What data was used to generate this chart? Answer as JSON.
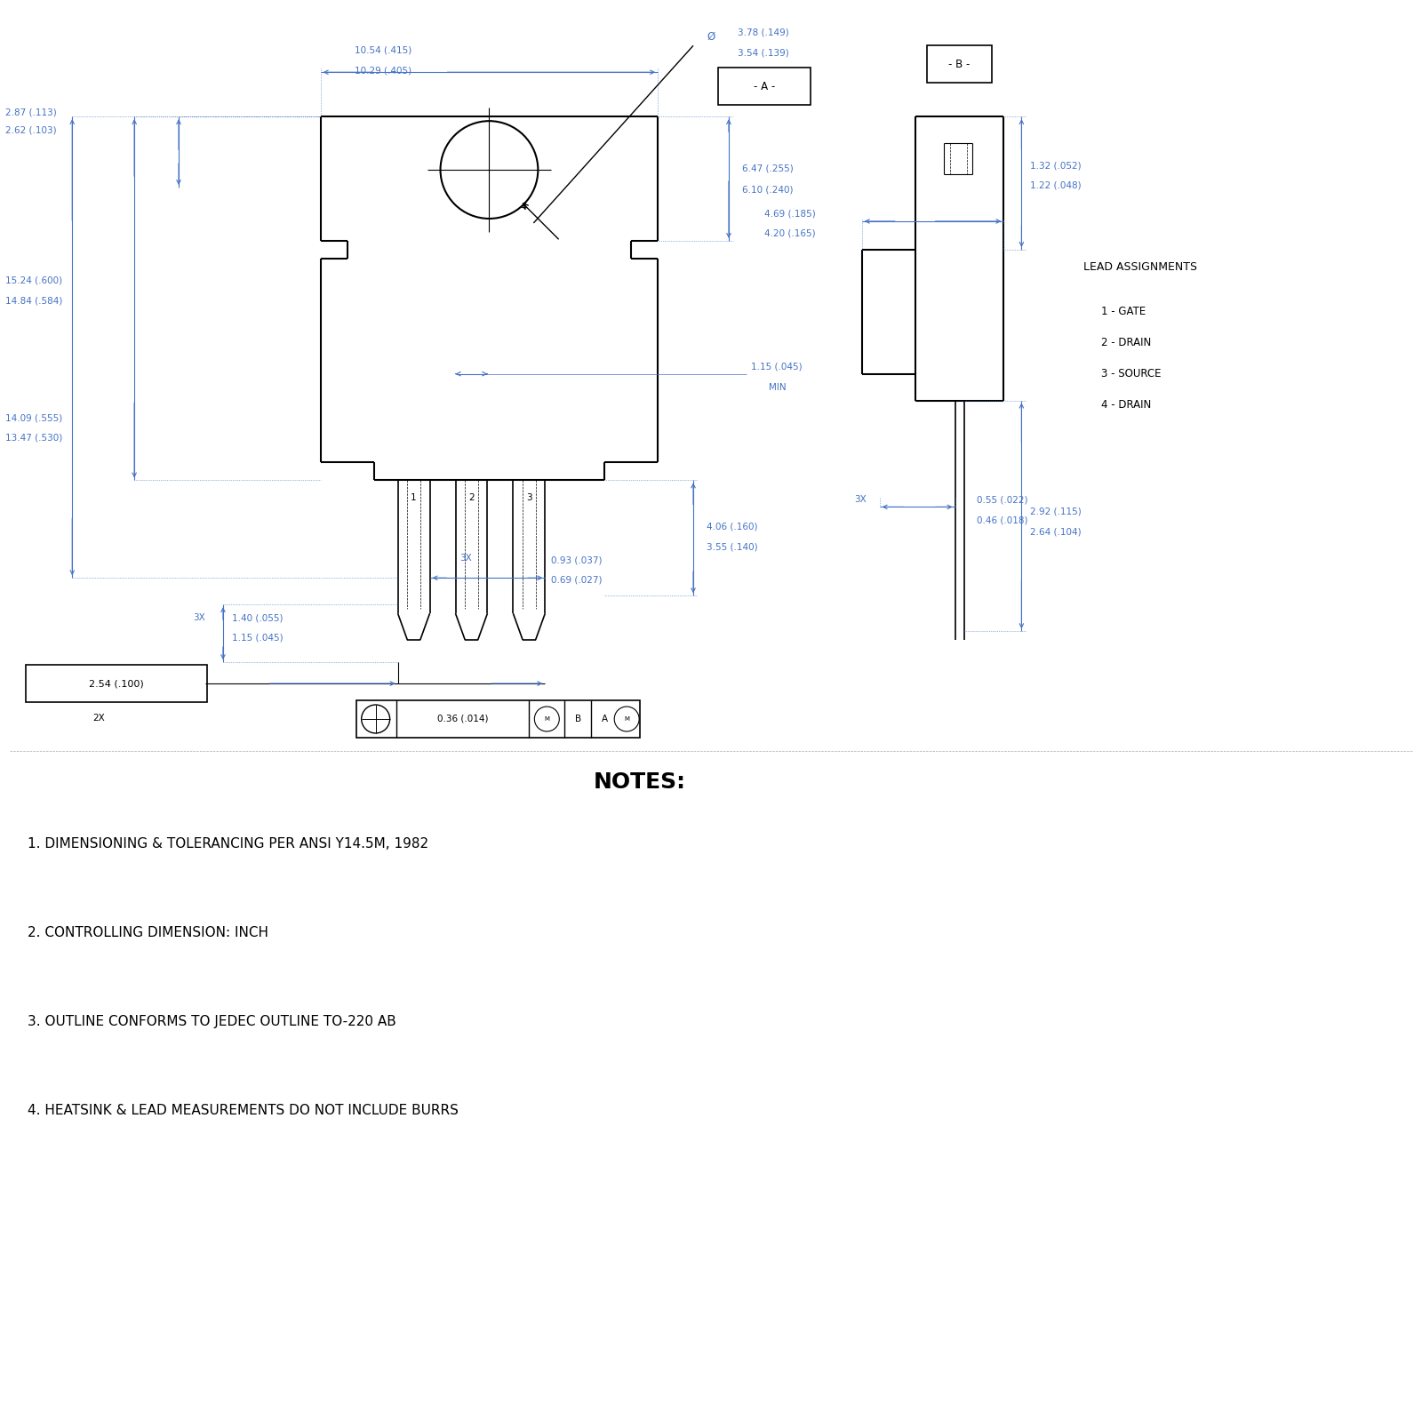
{
  "bg_color": "#ffffff",
  "line_color": "#000000",
  "dim_color": "#4472c4",
  "text_color": "#000000",
  "dim_text_color": "#4472c4",
  "notes_title": "NOTES:",
  "note1": "1. DIMENSIONING & TOLERANCING PER ANSI Y14.5M, 1982",
  "note2": "2. CONTROLLING DIMENSION: INCH",
  "note3": "3. OUTLINE CONFORMS TO JEDEC OUTLINE TO-220 AB",
  "note4": "4. HEATSINK & LEAD MEASUREMENTS DO NOT INCLUDE BURRS",
  "lead_title": "LEAD ASSIGNMENTS",
  "lead1": "1 - GATE",
  "lead2": "2 - DRAIN",
  "lead3": "3 - SOURCE",
  "lead4": "4 - DRAIN"
}
